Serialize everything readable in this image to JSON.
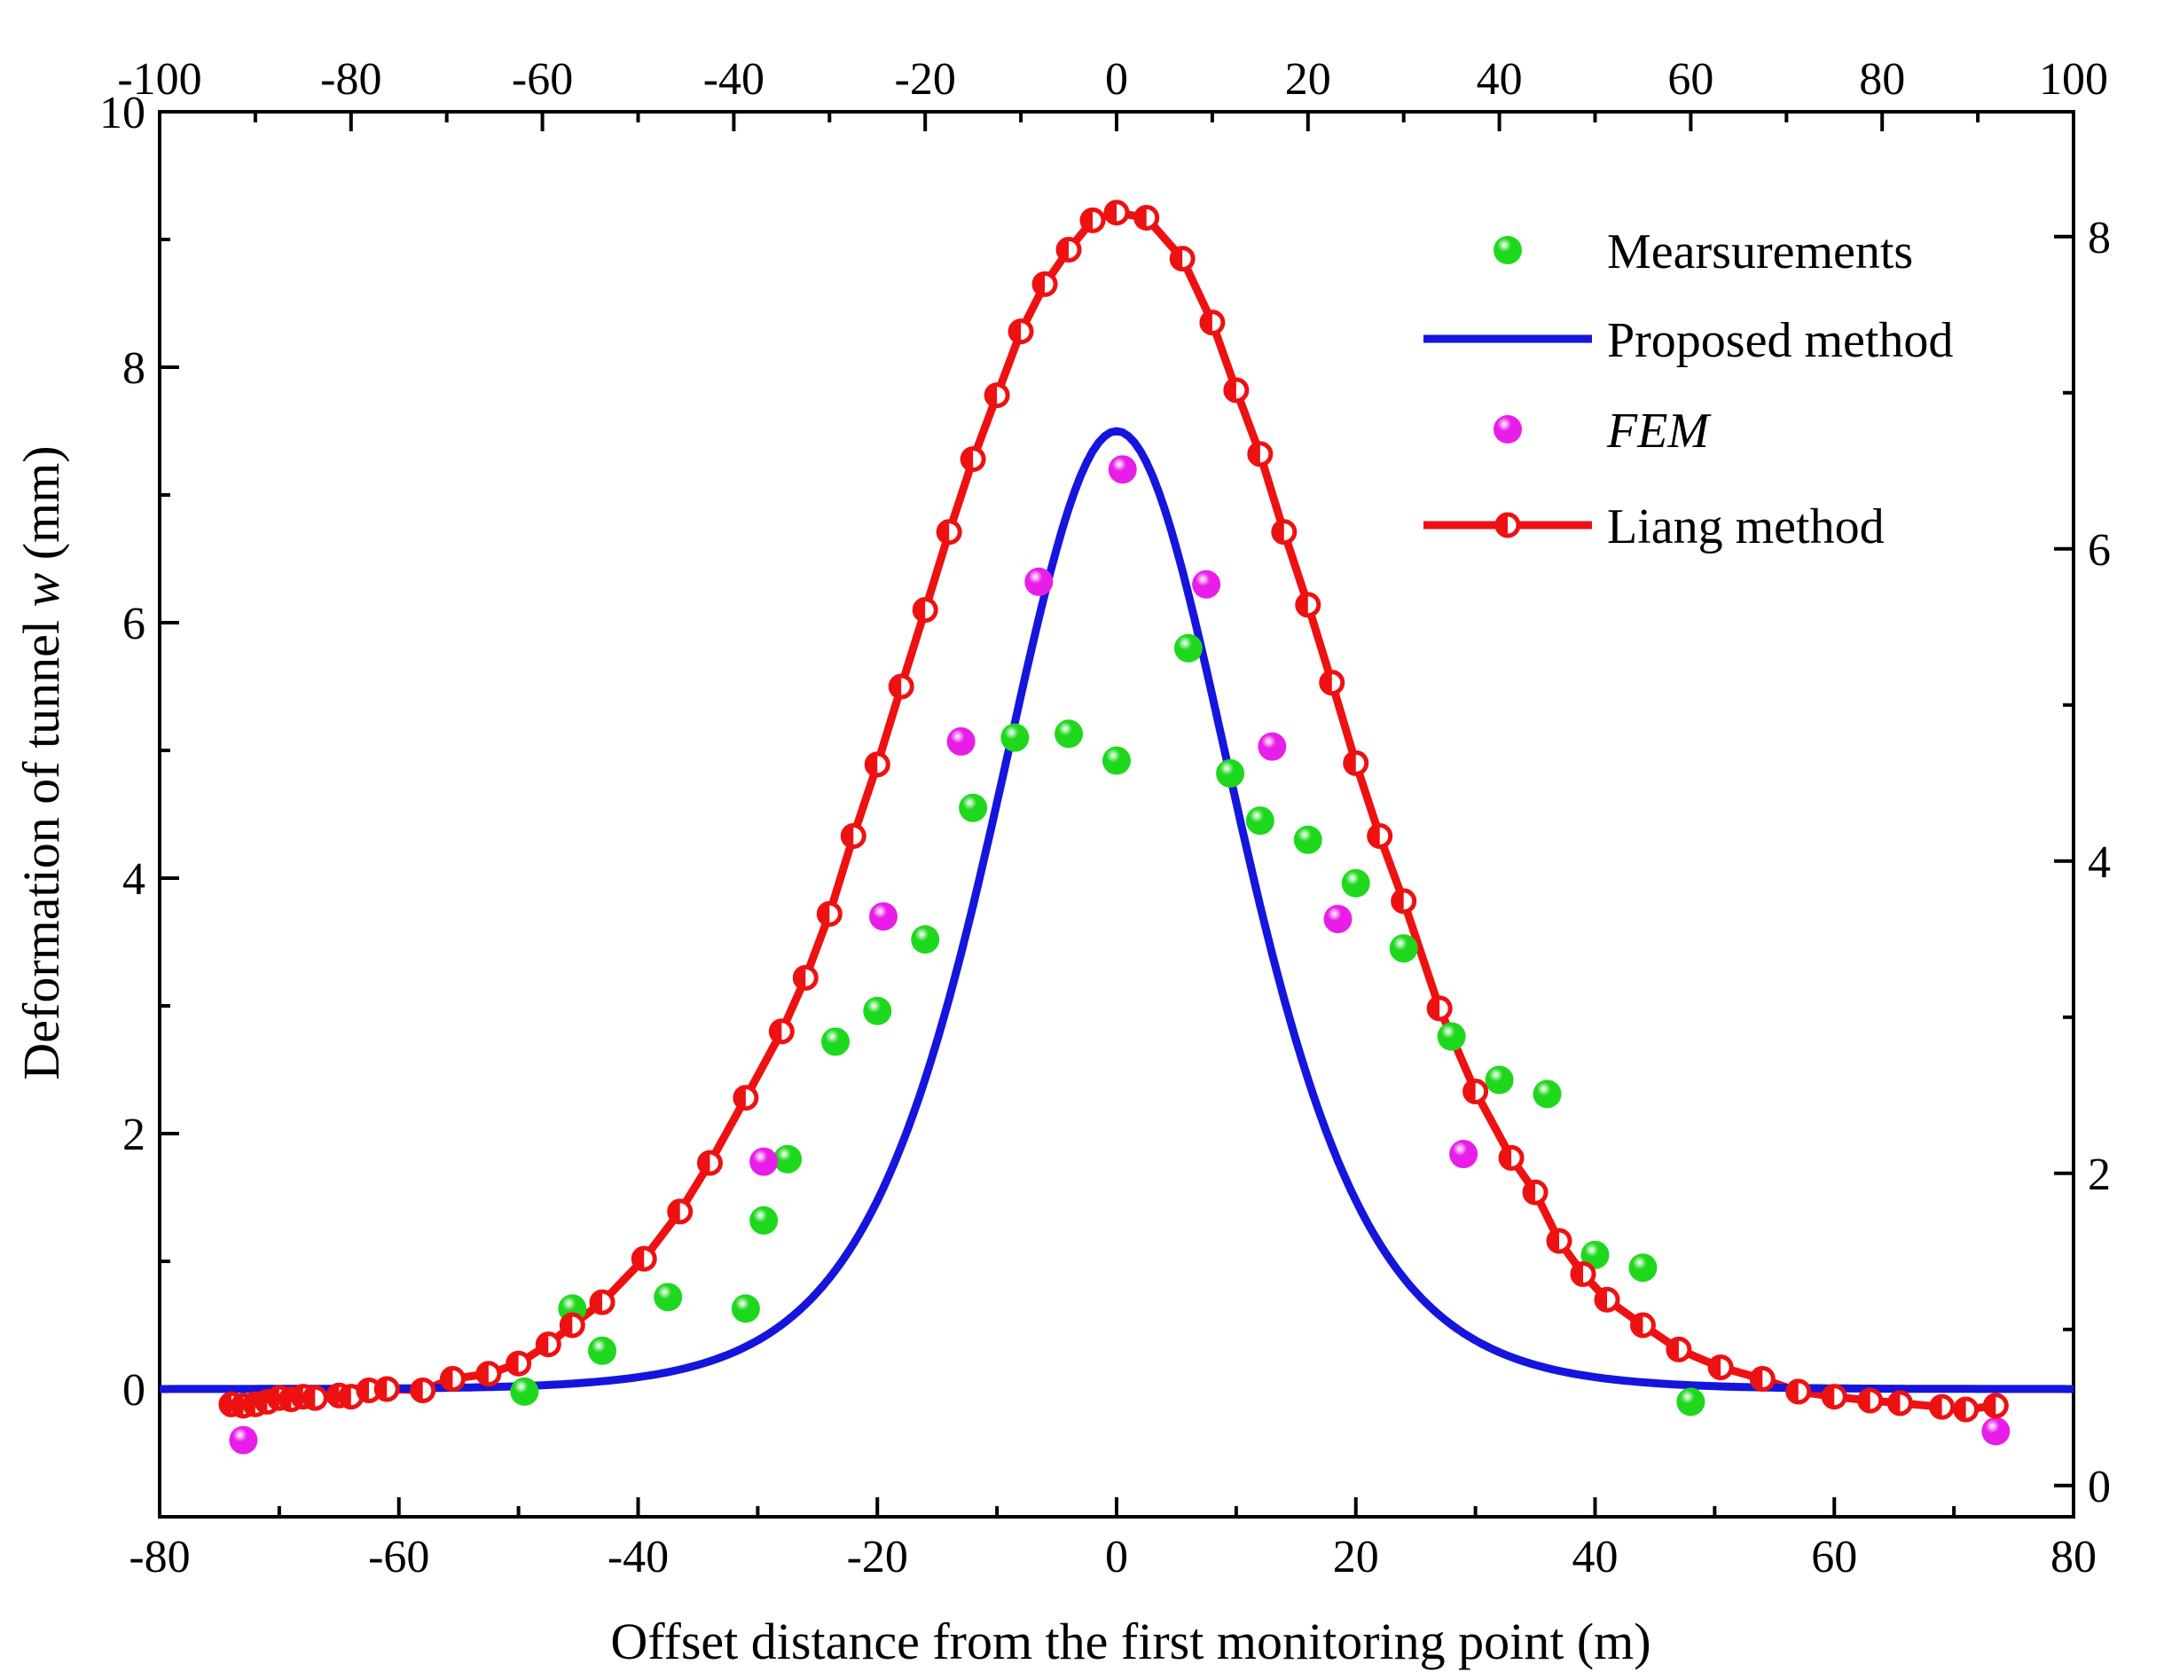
{
  "chart_data": {
    "type": "scatter+line",
    "title": "",
    "xlabel": "Offset distance from the first monitoring point (m)",
    "ylabel_prefix": "Deformation of tunnel ",
    "ylabel_var": "w",
    "ylabel_suffix": " (mm)",
    "xlim": [
      -80,
      80
    ],
    "ylim": [
      -1,
      10
    ],
    "x_ticks": [
      "-80",
      "-60",
      "-40",
      "-20",
      "0",
      "20",
      "40",
      "60",
      "80"
    ],
    "y_ticks": [
      "0",
      "2",
      "4",
      "6",
      "8",
      "10"
    ],
    "top_xlim": [
      -100,
      100
    ],
    "top_x_ticks": [
      "-100",
      "-80",
      "-60",
      "-40",
      "-20",
      "0",
      "20",
      "40",
      "60",
      "80",
      "100"
    ],
    "right_ylim": [
      -0.2,
      8.8
    ],
    "right_y_ticks": [
      "0",
      "2",
      "4",
      "6",
      "8"
    ],
    "legend": [
      {
        "label": "Mearsurements",
        "italic": false,
        "kind": "marker",
        "color": "#22dd22"
      },
      {
        "label": "Proposed method",
        "italic": false,
        "kind": "line",
        "color": "#1515dd"
      },
      {
        "label": "FEM",
        "italic": true,
        "kind": "marker",
        "color": "#ee22ee"
      },
      {
        "label": "Liang method",
        "italic": false,
        "kind": "line-marker",
        "color": "#ee1111"
      }
    ],
    "series": [
      {
        "name": "Mearsurements",
        "color": "#22dd22",
        "points": [
          [
            -49.5,
            -0.02
          ],
          [
            -45.5,
            0.63
          ],
          [
            -43,
            0.3
          ],
          [
            -37.5,
            0.72
          ],
          [
            -31,
            0.63
          ],
          [
            -29.5,
            1.32
          ],
          [
            -27.5,
            1.8
          ],
          [
            -23.5,
            2.72
          ],
          [
            -20,
            2.96
          ],
          [
            -16,
            3.52
          ],
          [
            -12,
            4.55
          ],
          [
            -8.5,
            5.1
          ],
          [
            -4,
            5.13
          ],
          [
            0,
            4.92
          ],
          [
            6,
            5.8
          ],
          [
            9.5,
            4.82
          ],
          [
            12,
            4.45
          ],
          [
            16,
            4.3
          ],
          [
            20,
            3.96
          ],
          [
            24,
            3.45
          ],
          [
            28,
            2.76
          ],
          [
            32,
            2.42
          ],
          [
            36,
            2.31
          ],
          [
            40,
            1.05
          ],
          [
            44,
            0.95
          ],
          [
            48,
            -0.1
          ]
        ]
      },
      {
        "name": "FEM",
        "color": "#ee22ee",
        "points": [
          [
            -73,
            -0.4
          ],
          [
            -29.5,
            1.78
          ],
          [
            -19.5,
            3.7
          ],
          [
            -13,
            5.07
          ],
          [
            -6.5,
            6.32
          ],
          [
            0.5,
            7.2
          ],
          [
            7.5,
            6.3
          ],
          [
            13,
            5.03
          ],
          [
            18.5,
            3.68
          ],
          [
            29,
            1.84
          ],
          [
            73.5,
            -0.33
          ]
        ]
      },
      {
        "name": "Proposed method",
        "color": "#1515dd",
        "model": "proposed",
        "x_range": [
          -80,
          80
        ],
        "peak": 7.5
      },
      {
        "name": "Liang method",
        "color": "#ee1111",
        "points": [
          [
            -74,
            -0.12
          ],
          [
            -73,
            -0.13
          ],
          [
            -72,
            -0.12
          ],
          [
            -71,
            -0.1
          ],
          [
            -70,
            -0.07
          ],
          [
            -69,
            -0.08
          ],
          [
            -68,
            -0.06
          ],
          [
            -67,
            -0.07
          ],
          [
            -65,
            -0.05
          ],
          [
            -64,
            -0.06
          ],
          [
            -62.5,
            -0.01
          ],
          [
            -61,
            0
          ],
          [
            -58,
            -0.01
          ],
          [
            -55.5,
            0.08
          ],
          [
            -52.5,
            0.12
          ],
          [
            -50,
            0.2
          ],
          [
            -47.5,
            0.35
          ],
          [
            -45.5,
            0.5
          ],
          [
            -43,
            0.68
          ],
          [
            -39.5,
            1.02
          ],
          [
            -36.5,
            1.39
          ],
          [
            -34,
            1.77
          ],
          [
            -31,
            2.28
          ],
          [
            -28,
            2.8
          ],
          [
            -26,
            3.22
          ],
          [
            -24,
            3.72
          ],
          [
            -22,
            4.33
          ],
          [
            -20,
            4.89
          ],
          [
            -18,
            5.5
          ],
          [
            -16,
            6.1
          ],
          [
            -14,
            6.71
          ],
          [
            -12,
            7.28
          ],
          [
            -10,
            7.78
          ],
          [
            -8,
            8.28
          ],
          [
            -6,
            8.65
          ],
          [
            -4,
            8.92
          ],
          [
            -2,
            9.15
          ],
          [
            0,
            9.21
          ],
          [
            2.5,
            9.17
          ],
          [
            5.5,
            8.85
          ],
          [
            8,
            8.35
          ],
          [
            10,
            7.82
          ],
          [
            12,
            7.32
          ],
          [
            14,
            6.71
          ],
          [
            16,
            6.14
          ],
          [
            18,
            5.53
          ],
          [
            20,
            4.9
          ],
          [
            22,
            4.33
          ],
          [
            24,
            3.82
          ],
          [
            27,
            2.98
          ],
          [
            30,
            2.33
          ],
          [
            33,
            1.81
          ],
          [
            35,
            1.54
          ],
          [
            37,
            1.16
          ],
          [
            39,
            0.9
          ],
          [
            41,
            0.7
          ],
          [
            44,
            0.5
          ],
          [
            47,
            0.31
          ],
          [
            50.5,
            0.17
          ],
          [
            54,
            0.08
          ],
          [
            57,
            -0.02
          ],
          [
            60,
            -0.06
          ],
          [
            63,
            -0.09
          ],
          [
            65.5,
            -0.11
          ],
          [
            69,
            -0.14
          ],
          [
            71,
            -0.16
          ],
          [
            73.5,
            -0.13
          ]
        ]
      }
    ]
  }
}
